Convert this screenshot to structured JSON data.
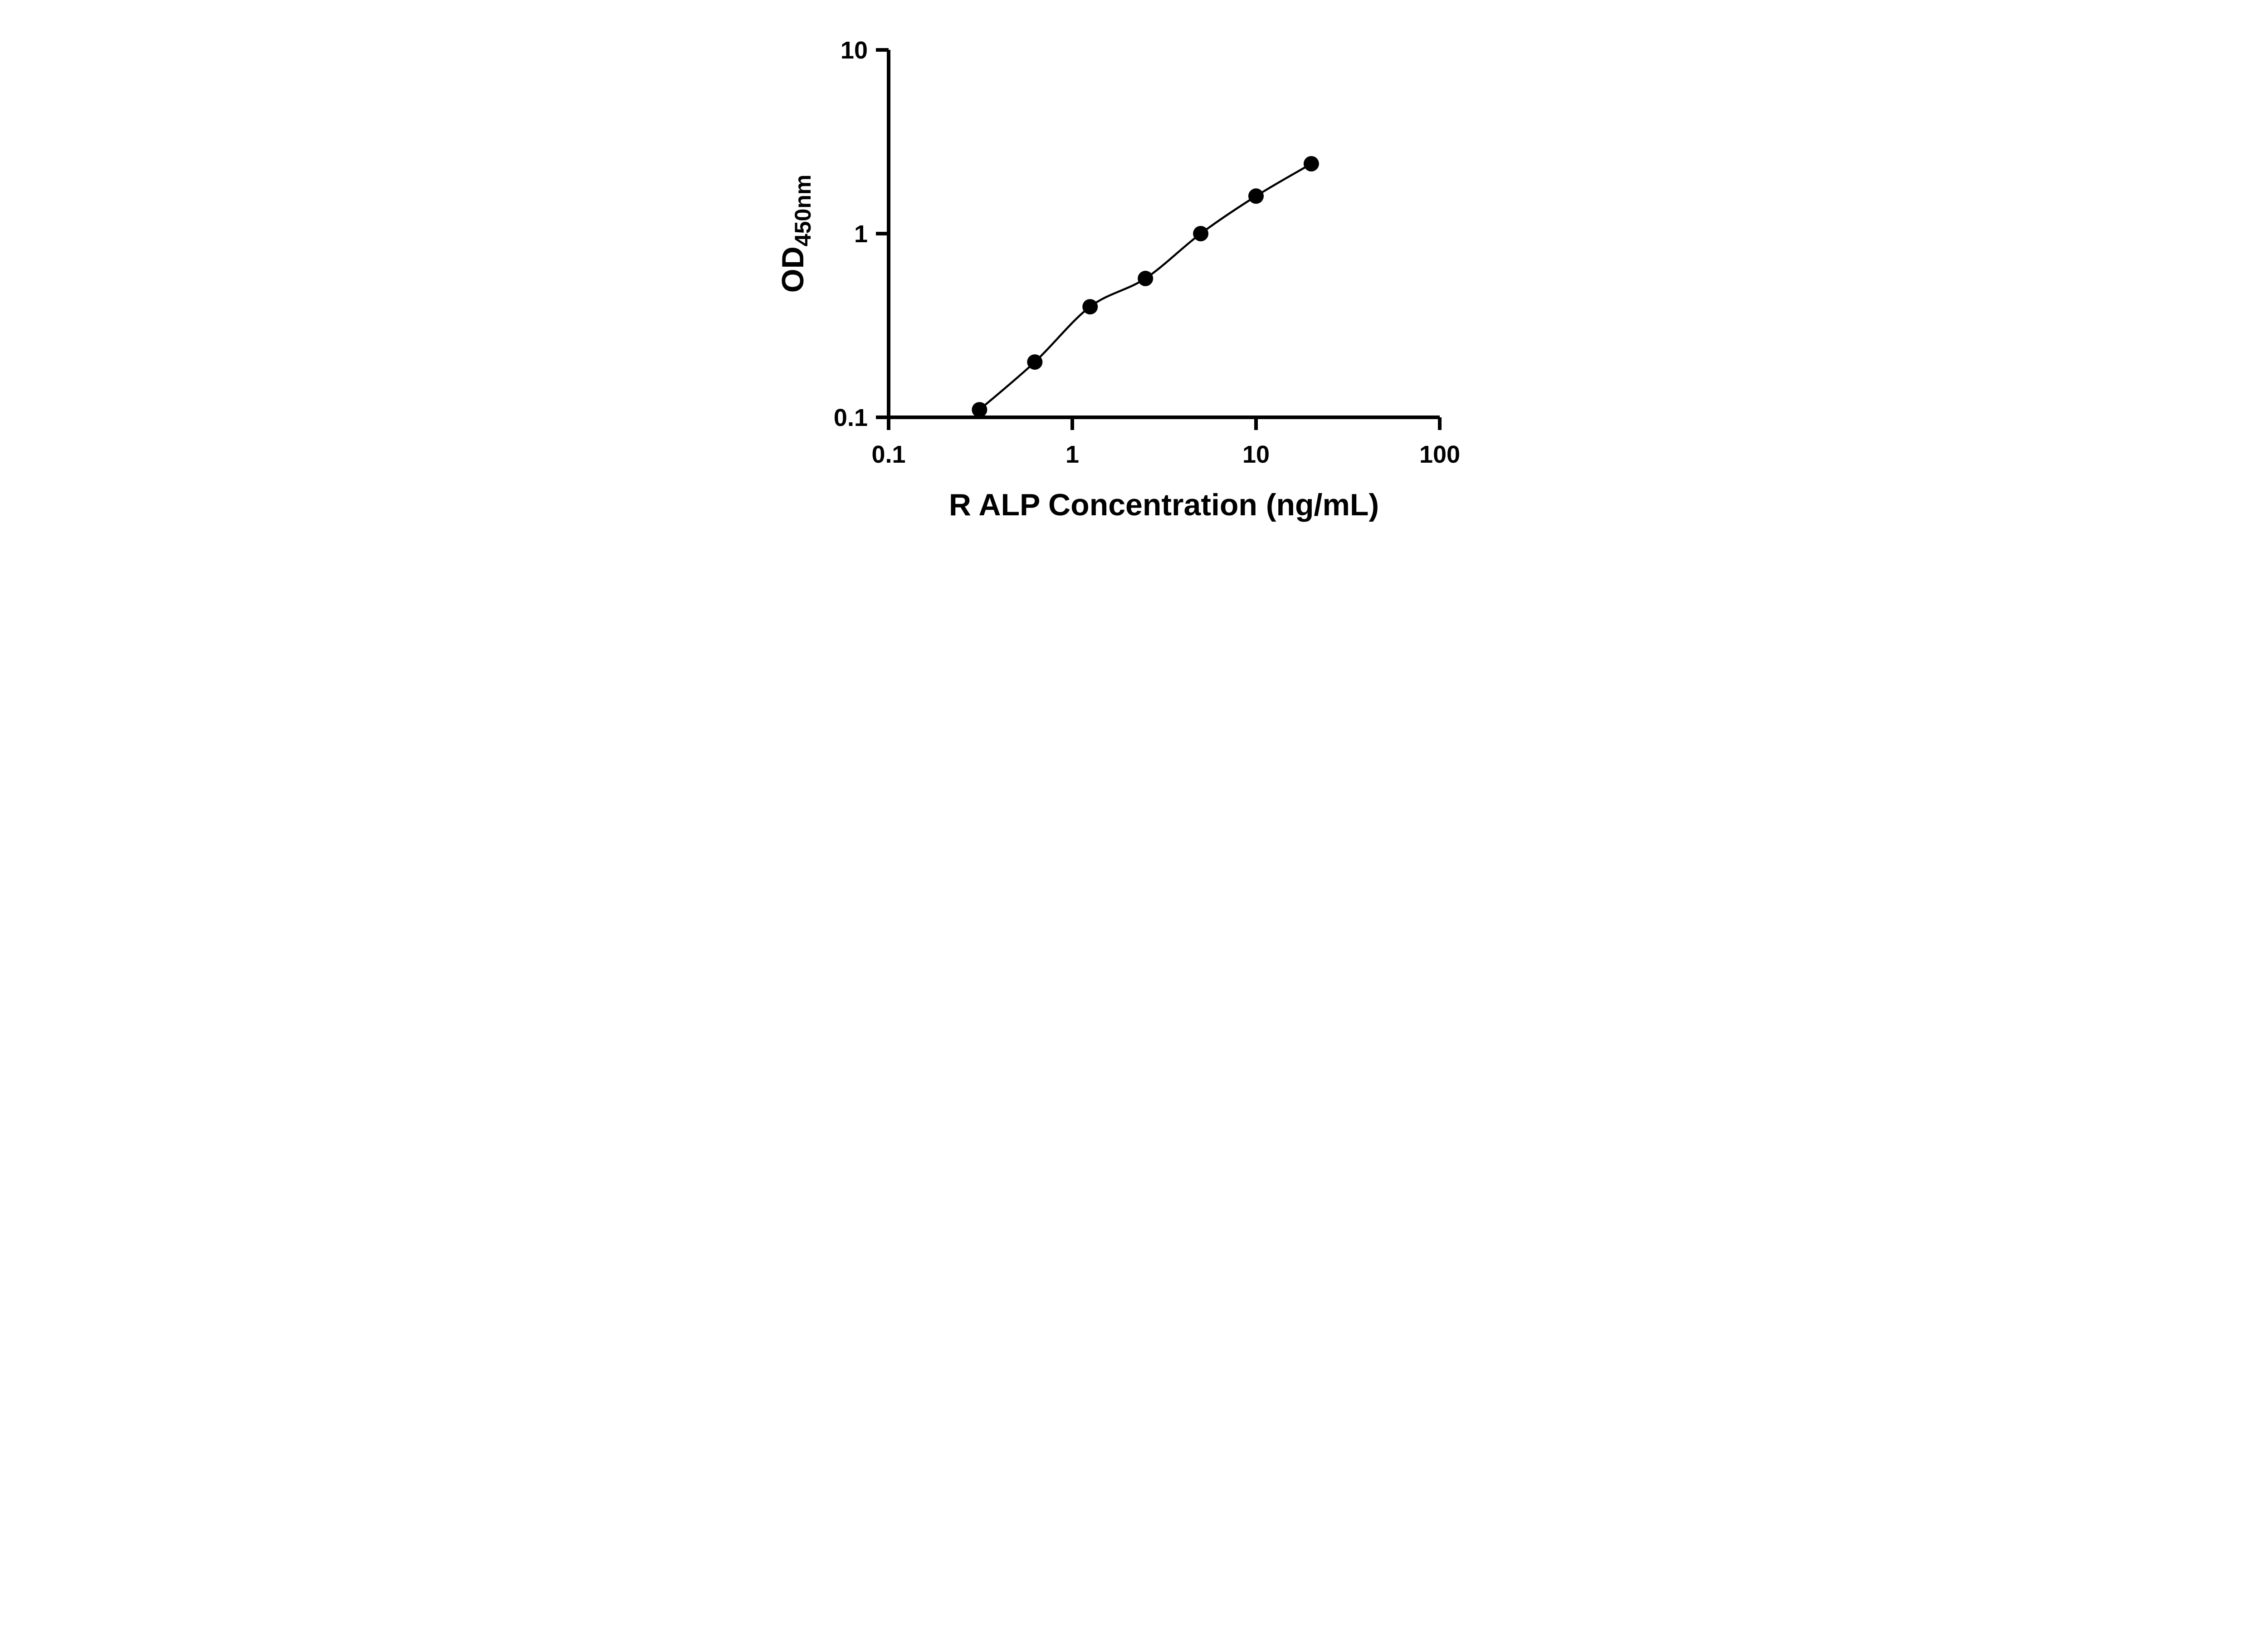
{
  "page": {
    "background": "#ffffff"
  },
  "chart_data": {
    "type": "scatter",
    "title": "",
    "xlabel": "R ALP Concentration (ng/mL)",
    "ylabel": "OD450nm",
    "ylabel_main": "OD",
    "ylabel_sub": "450nm",
    "x_scale": "log10",
    "y_scale": "log10",
    "xlim": [
      0.1,
      100
    ],
    "ylim": [
      0.1,
      10
    ],
    "x_tick_labels": [
      "0.1",
      "1",
      "10",
      "100"
    ],
    "x_tick_values": [
      0.1,
      1,
      10,
      100
    ],
    "y_tick_labels": [
      "0.1",
      "1",
      "10"
    ],
    "y_tick_values": [
      0.1,
      1,
      10
    ],
    "grid": false,
    "legend": "none",
    "marker": "filled-circle",
    "colors": {
      "axis": "#000000",
      "points": "#000000",
      "curve": "#000000",
      "background": "#ffffff"
    },
    "series": [
      {
        "x": [
          0.3125,
          0.625,
          1.25,
          2.5,
          5,
          10,
          20
        ],
        "y": [
          0.11,
          0.2,
          0.4,
          0.57,
          1.0,
          1.6,
          2.4
        ],
        "fit_line": "smooth"
      }
    ]
  }
}
